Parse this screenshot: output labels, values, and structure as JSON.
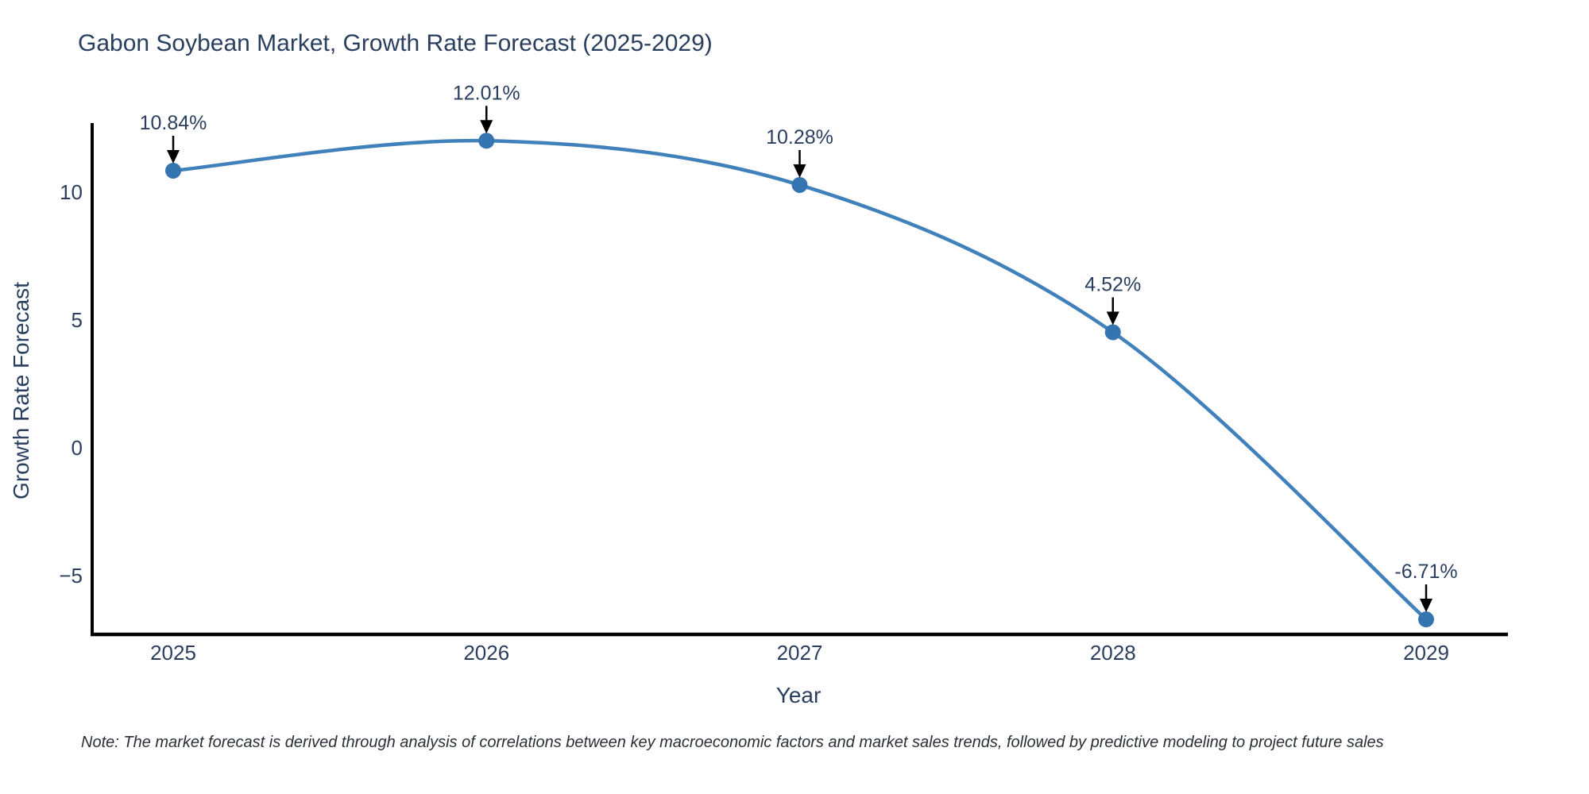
{
  "title": "Gabon Soybean Market, Growth Rate Forecast (2025-2029)",
  "note": "Note: The market forecast is derived through analysis of correlations between key macroeconomic factors and market sales trends, followed by predictive modeling to project future sales",
  "x_axis": {
    "label": "Year",
    "ticks": [
      {
        "label": "2025",
        "value": 2025
      },
      {
        "label": "2026",
        "value": 2026
      },
      {
        "label": "2027",
        "value": 2027
      },
      {
        "label": "2028",
        "value": 2028
      },
      {
        "label": "2029",
        "value": 2029
      }
    ]
  },
  "y_axis": {
    "label": "Growth Rate Forecast",
    "ticks": [
      {
        "label": "10",
        "value": 10
      },
      {
        "label": "5",
        "value": 5
      },
      {
        "label": "0",
        "value": 0
      },
      {
        "label": "−5",
        "value": -5
      }
    ]
  },
  "colors": {
    "line": "#4181bb",
    "marker": "#3474b0",
    "axis": "#000000",
    "text": "#2a3f5f",
    "arrow": "#000000",
    "background": "#ffffff"
  },
  "chart_data": {
    "type": "line",
    "line_shape": "spline",
    "markers": true,
    "x": [
      2025,
      2026,
      2027,
      2028,
      2029
    ],
    "values": [
      10.84,
      12.01,
      10.28,
      4.52,
      -6.71
    ],
    "point_labels": [
      "10.84%",
      "12.01%",
      "10.28%",
      "4.52%",
      "-6.71%"
    ],
    "annotation_style": "value label above each point with downward black arrow",
    "title": "Gabon Soybean Market, Growth Rate Forecast (2025-2029)",
    "xlabel": "Year",
    "ylabel": "Growth Rate Forecast",
    "xlim": [
      2024.74,
      2029.26
    ],
    "ylim": [
      -7.3,
      12.7
    ],
    "grid": false,
    "legend": null
  }
}
